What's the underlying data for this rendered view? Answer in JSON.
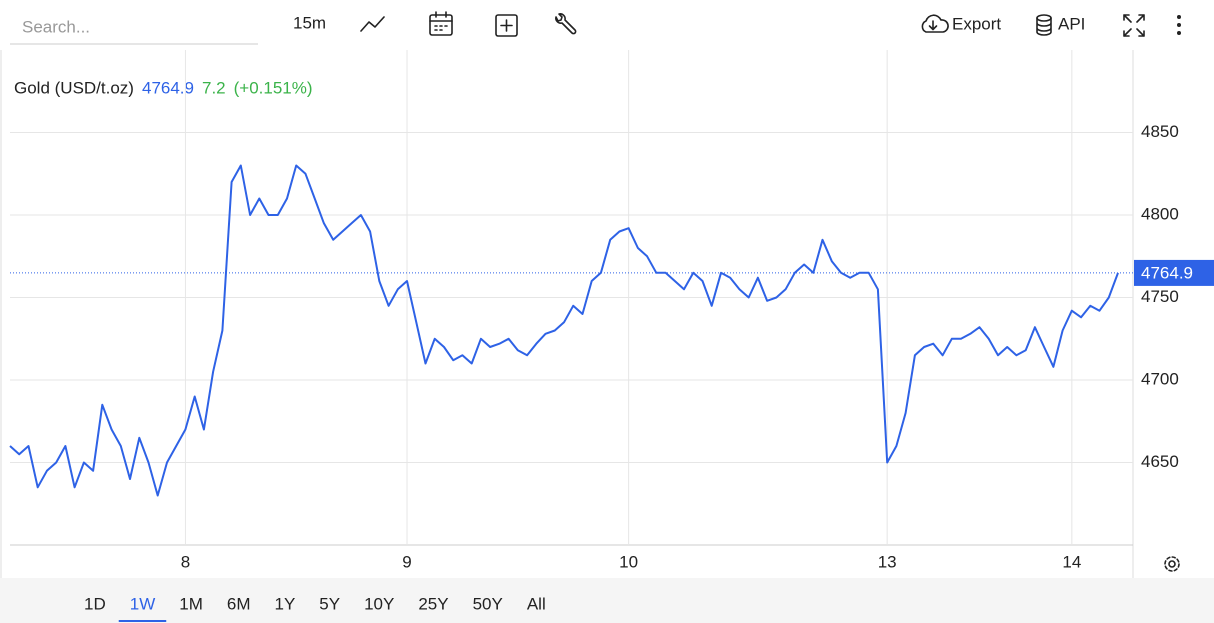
{
  "toolbar": {
    "search_placeholder": "Search...",
    "interval": "15m",
    "export": "Export",
    "api": "API"
  },
  "ranges": [
    "1D",
    "1W",
    "1M",
    "6M",
    "1Y",
    "5Y",
    "10Y",
    "25Y",
    "50Y",
    "All"
  ],
  "selected_range": "1W",
  "chart_data": {
    "type": "line",
    "title": "Gold (USD/t.oz)",
    "last": 4764.9,
    "change": 7.2,
    "change_percent_label": "(+0.151%)",
    "grid": true,
    "categories": [
      null,
      null,
      null,
      null,
      null,
      null,
      null,
      null,
      null,
      null,
      null,
      null,
      null,
      null,
      null,
      null,
      null,
      null,
      null,
      "8",
      null,
      null,
      null,
      null,
      null,
      null,
      null,
      null,
      null,
      null,
      null,
      null,
      null,
      null,
      null,
      null,
      null,
      null,
      null,
      null,
      null,
      null,
      null,
      "9",
      null,
      null,
      null,
      null,
      null,
      null,
      null,
      null,
      null,
      null,
      null,
      null,
      null,
      null,
      null,
      null,
      null,
      null,
      null,
      null,
      null,
      null,
      null,
      "10",
      null,
      null,
      null,
      null,
      null,
      null,
      null,
      null,
      null,
      null,
      null,
      null,
      null,
      null,
      null,
      null,
      null,
      null,
      null,
      null,
      null,
      null,
      null,
      null,
      null,
      null,
      null,
      "13",
      null,
      null,
      null,
      null,
      null,
      null,
      null,
      null,
      null,
      null,
      null,
      null,
      null,
      null,
      null,
      null,
      null,
      null,
      null,
      "14",
      null,
      null,
      null,
      null,
      null
    ],
    "series": [
      {
        "name": "Gold (USD/t.oz)",
        "color": "#2e62e6",
        "values": [
          4660,
          4655,
          4660,
          4635,
          4645,
          4650,
          4660,
          4635,
          4650,
          4645,
          4685,
          4670,
          4660,
          4640,
          4665,
          4650,
          4630,
          4650,
          4660,
          4670,
          4690,
          4670,
          4705,
          4730,
          4820,
          4830,
          4800,
          4810,
          4800,
          4800,
          4810,
          4830,
          4825,
          4810,
          4795,
          4785,
          4790,
          4795,
          4800,
          4790,
          4760,
          4745,
          4755,
          4760,
          4735,
          4710,
          4725,
          4720,
          4712,
          4715,
          4710,
          4725,
          4720,
          4722,
          4725,
          4718,
          4715,
          4722,
          4728,
          4730,
          4735,
          4745,
          4740,
          4760,
          4765,
          4785,
          4790,
          4792,
          4780,
          4775,
          4765,
          4765,
          4760,
          4755,
          4765,
          4760,
          4745,
          4765,
          4762,
          4755,
          4750,
          4762,
          4748,
          4750,
          4755,
          4765,
          4770,
          4765,
          4785,
          4772,
          4765,
          4762,
          4765,
          4765,
          4755,
          4650,
          4660,
          4680,
          4715,
          4720,
          4722,
          4715,
          4725,
          4725,
          4728,
          4732,
          4725,
          4715,
          4720,
          4715,
          4718,
          4732,
          4720,
          4708,
          4730,
          4742,
          4738,
          4745,
          4742,
          4750,
          4764.9
        ]
      }
    ],
    "ylim": [
      4600,
      4900
    ],
    "yticks": [
      4650,
      4700,
      4750,
      4800,
      4850
    ]
  }
}
